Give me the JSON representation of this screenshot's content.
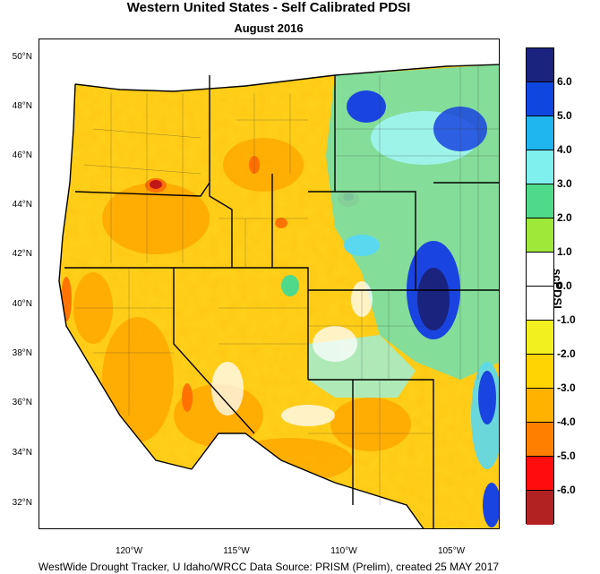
{
  "title": "Western United States - Self Calibrated PDSI",
  "subtitle": "August 2016",
  "footer": "WestWide Drought Tracker, U Idaho/WRCC Data Source: PRISM (Prelim), created 25 MAY 2017",
  "lat_labels": [
    "50°N",
    "48°N",
    "46°N",
    "44°N",
    "42°N",
    "40°N",
    "38°N",
    "36°N",
    "34°N",
    "32°N"
  ],
  "lon_labels": [
    "120°W",
    "115°W",
    "110°W",
    "105°W"
  ],
  "legend": {
    "title": "scPDSI",
    "labels": [
      "6.0",
      "5.0",
      "4.0",
      "3.0",
      "2.0",
      "1.0",
      "0.0",
      "-1.0",
      "-2.0",
      "-3.0",
      "-4.0",
      "-5.0",
      "-6.0"
    ],
    "colors": [
      "#1a237e",
      "#0d47e0",
      "#1fb6f0",
      "#7ff0ee",
      "#4fd98a",
      "#9ee83a",
      "#ffffff",
      "#ffffff",
      "#f3f020",
      "#ffd400",
      "#ffb300",
      "#ff7f00",
      "#ff0d0d",
      "#b22222"
    ]
  }
}
